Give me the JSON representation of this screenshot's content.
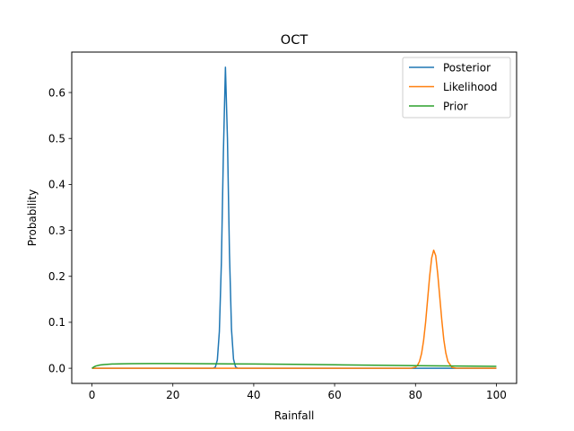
{
  "chart_data": {
    "type": "line",
    "title": "OCT",
    "xlabel": "Rainfall",
    "ylabel": "Probability",
    "xlim": [
      -5,
      105
    ],
    "ylim": [
      -0.033,
      0.688
    ],
    "xticks": [
      0,
      20,
      40,
      60,
      80,
      100
    ],
    "yticks": [
      0.0,
      0.1,
      0.2,
      0.3,
      0.4,
      0.5,
      0.6
    ],
    "xtick_labels": [
      "0",
      "20",
      "40",
      "60",
      "80",
      "100"
    ],
    "ytick_labels": [
      "0.0",
      "0.1",
      "0.2",
      "0.3",
      "0.4",
      "0.5",
      "0.6"
    ],
    "grid": false,
    "legend_position": "top-right",
    "series": [
      {
        "name": "Posterior",
        "color": "#1f77b4",
        "x": [
          0,
          29,
          30,
          30.5,
          31,
          31.5,
          32,
          32.5,
          33,
          33.5,
          34,
          34.5,
          35,
          35.5,
          36,
          37,
          100
        ],
        "y": [
          0,
          0,
          0.0002,
          0.0024,
          0.018,
          0.08,
          0.23,
          0.47,
          0.655,
          0.5,
          0.25,
          0.085,
          0.02,
          0.003,
          0.0003,
          0,
          0
        ]
      },
      {
        "name": "Likelihood",
        "color": "#ff7f0e",
        "x": [
          0,
          78,
          79,
          80,
          80.5,
          81,
          81.5,
          82,
          82.5,
          83,
          83.5,
          84,
          84.5,
          85,
          85.5,
          86,
          86.5,
          87,
          87.5,
          88,
          89,
          90,
          100
        ],
        "y": [
          0,
          0,
          0.0003,
          0.0025,
          0.0065,
          0.015,
          0.032,
          0.06,
          0.1,
          0.15,
          0.2,
          0.24,
          0.257,
          0.245,
          0.205,
          0.155,
          0.105,
          0.062,
          0.033,
          0.015,
          0.002,
          0.0002,
          0
        ]
      },
      {
        "name": "Prior",
        "color": "#2ca02c",
        "x": [
          0,
          0.5,
          1,
          2,
          3,
          5,
          8,
          10,
          15,
          20,
          30,
          40,
          50,
          60,
          70,
          80,
          90,
          100
        ],
        "y": [
          0.0,
          0.003,
          0.005,
          0.007,
          0.008,
          0.0092,
          0.0098,
          0.01,
          0.0102,
          0.0102,
          0.0098,
          0.0092,
          0.0084,
          0.0075,
          0.0066,
          0.0057,
          0.0049,
          0.0042
        ]
      }
    ]
  }
}
